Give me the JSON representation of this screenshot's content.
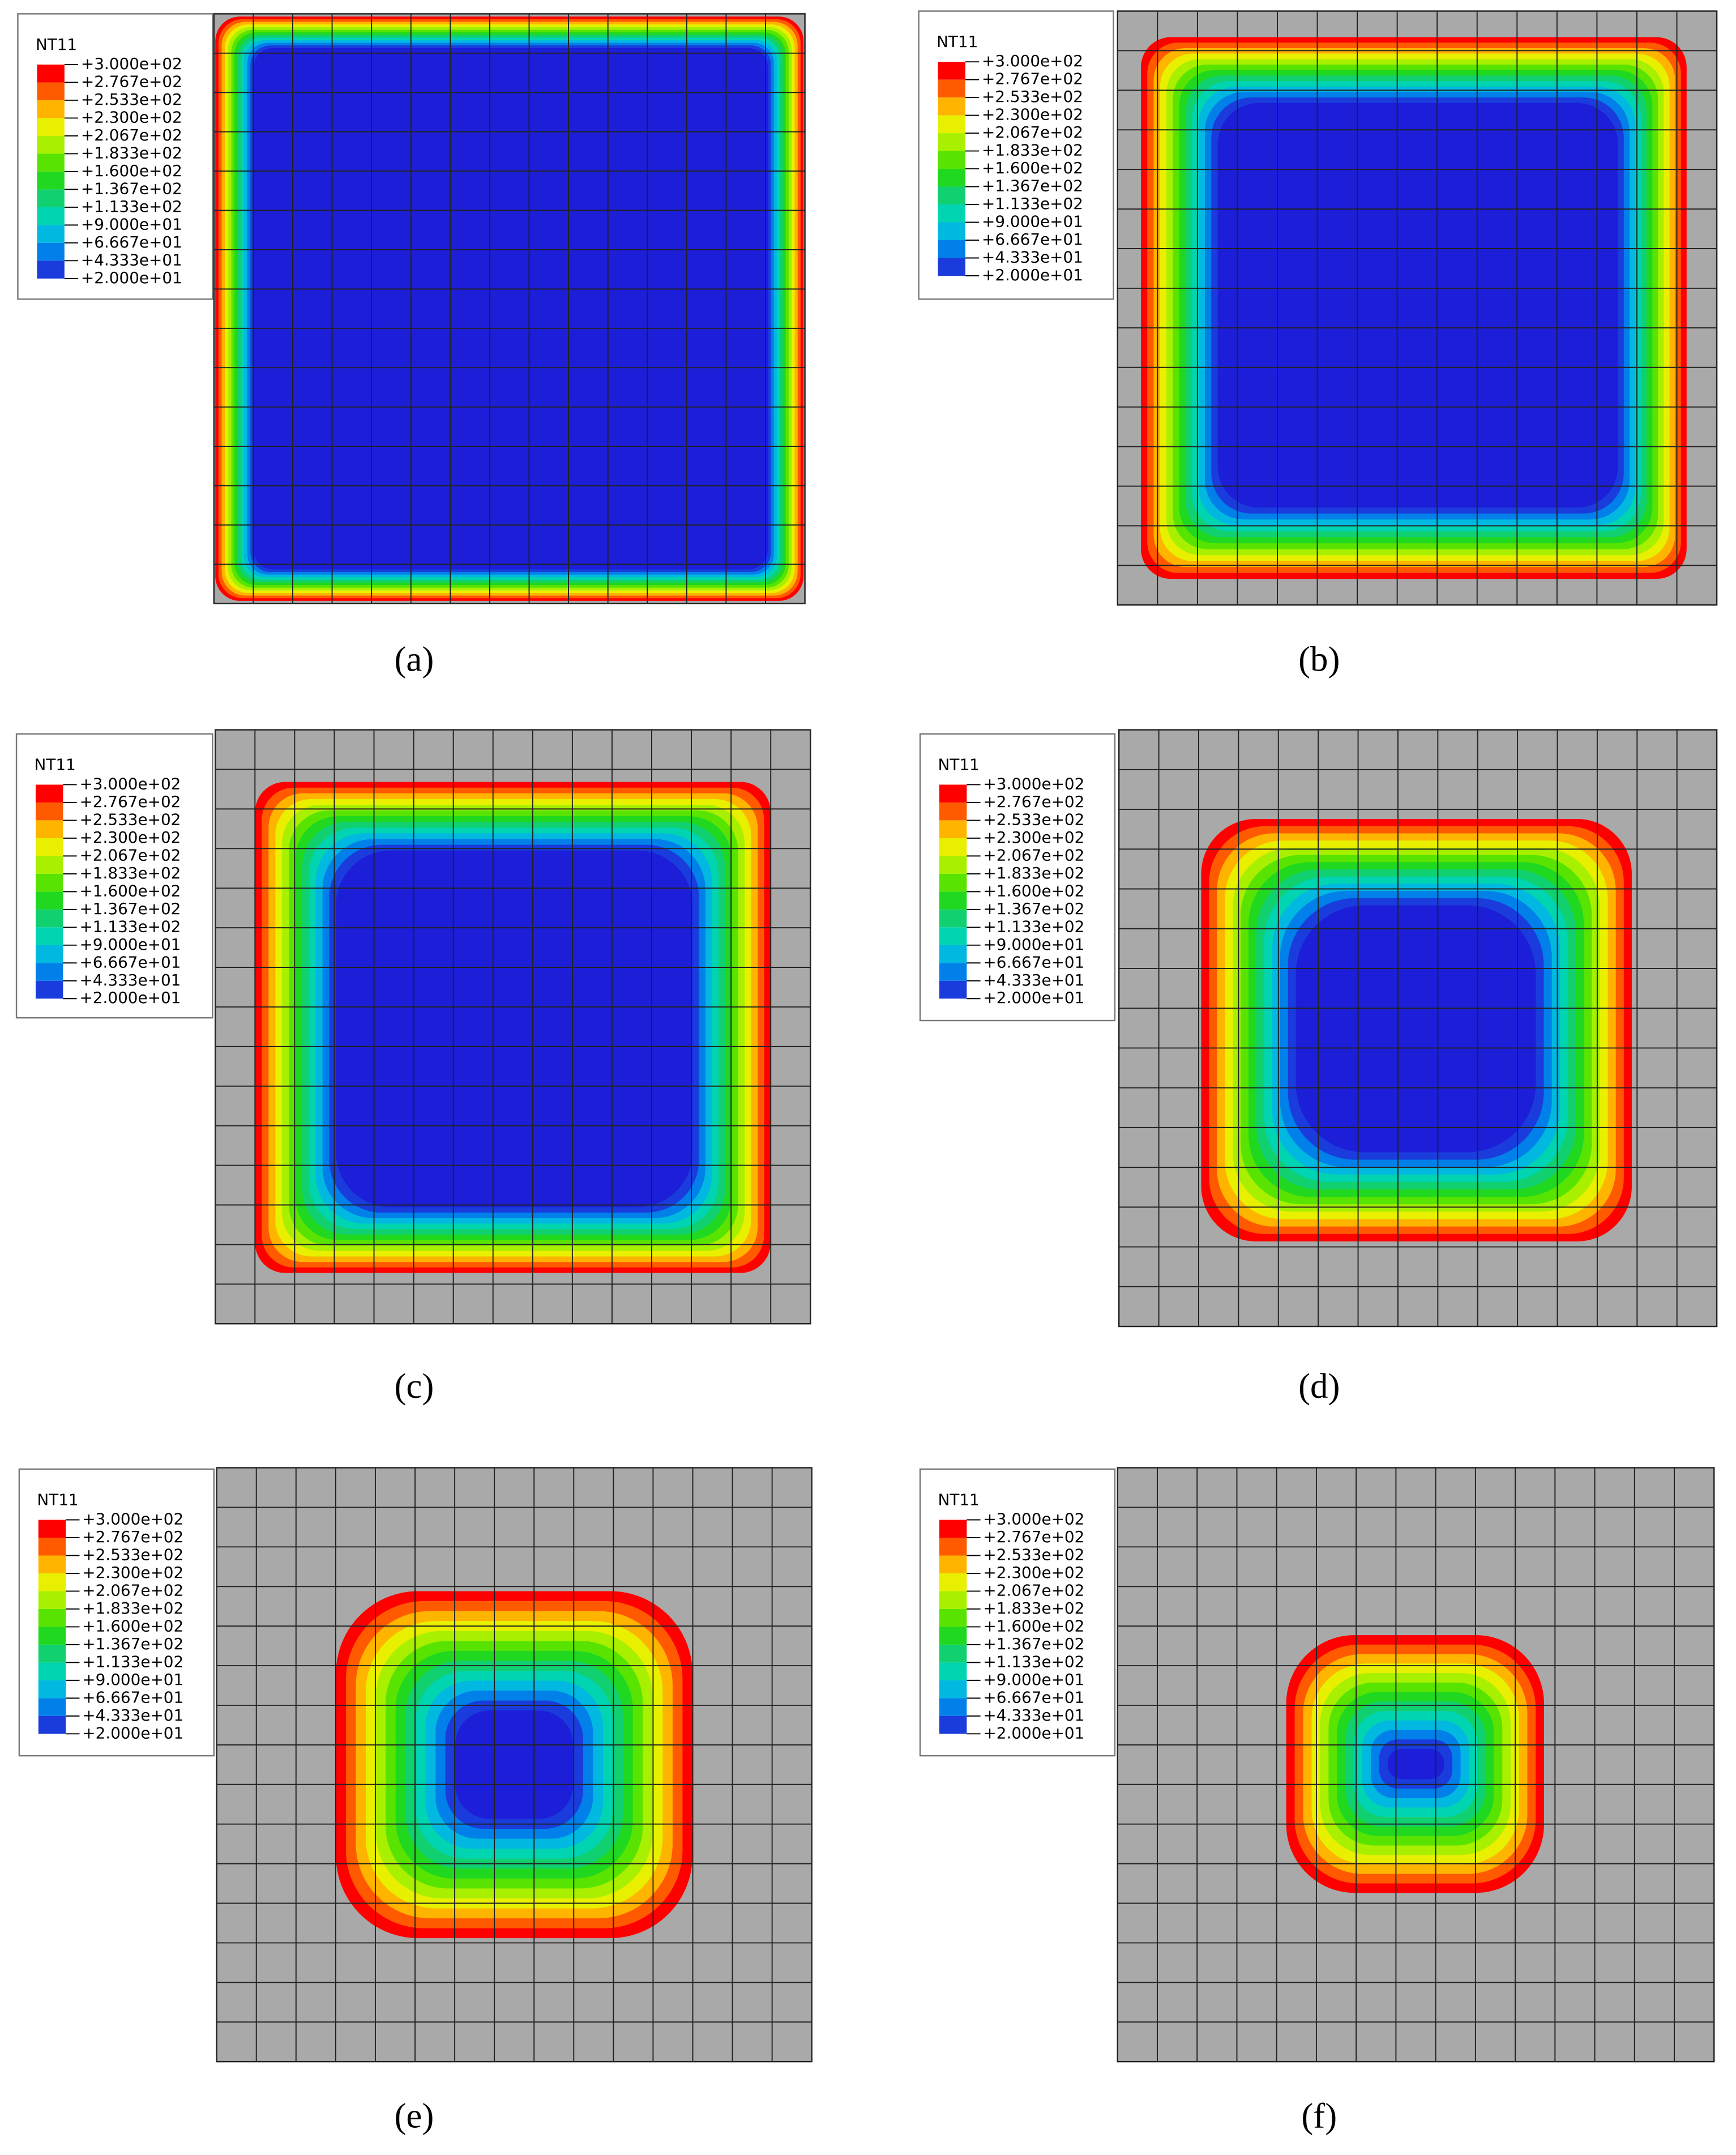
{
  "panels": [
    {
      "legend": {
        "title": "NT11",
        "levels": [
          "+3.000e+02",
          "+2.767e+02",
          "+2.533e+02",
          "+2.300e+02",
          "+2.067e+02",
          "+1.833e+02",
          "+1.600e+02",
          "+1.367e+02",
          "+1.133e+02",
          "+9.000e+01",
          "+6.667e+01",
          "+4.333e+01",
          "+2.000e+01"
        ]
      },
      "caption": "(a)"
    },
    {
      "legend": {
        "title": "NT11",
        "levels": [
          "+3.000e+02",
          "+2.767e+02",
          "+2.533e+02",
          "+2.300e+02",
          "+2.067e+02",
          "+1.833e+02",
          "+1.600e+02",
          "+1.367e+02",
          "+1.133e+02",
          "+9.000e+01",
          "+6.667e+01",
          "+4.333e+01",
          "+2.000e+01"
        ]
      },
      "caption": "(b)"
    },
    {
      "legend": {
        "title": "NT11",
        "levels": [
          "+3.000e+02",
          "+2.767e+02",
          "+2.533e+02",
          "+2.300e+02",
          "+2.067e+02",
          "+1.833e+02",
          "+1.600e+02",
          "+1.367e+02",
          "+1.133e+02",
          "+9.000e+01",
          "+6.667e+01",
          "+4.333e+01",
          "+2.000e+01"
        ]
      },
      "caption": "(c)"
    },
    {
      "legend": {
        "title": "NT11",
        "levels": [
          "+3.000e+02",
          "+2.767e+02",
          "+2.533e+02",
          "+2.300e+02",
          "+2.067e+02",
          "+1.833e+02",
          "+1.600e+02",
          "+1.367e+02",
          "+1.133e+02",
          "+9.000e+01",
          "+6.667e+01",
          "+4.333e+01",
          "+2.000e+01"
        ]
      },
      "caption": "(d)"
    },
    {
      "legend": {
        "title": "NT11",
        "levels": [
          "+3.000e+02",
          "+2.767e+02",
          "+2.533e+02",
          "+2.300e+02",
          "+2.067e+02",
          "+1.833e+02",
          "+1.600e+02",
          "+1.367e+02",
          "+1.133e+02",
          "+9.000e+01",
          "+6.667e+01",
          "+4.333e+01",
          "+2.000e+01"
        ]
      },
      "caption": "(e)"
    },
    {
      "legend": {
        "title": "NT11",
        "levels": [
          "+3.000e+02",
          "+2.767e+02",
          "+2.533e+02",
          "+2.300e+02",
          "+2.067e+02",
          "+1.833e+02",
          "+1.600e+02",
          "+1.367e+02",
          "+1.133e+02",
          "+9.000e+01",
          "+6.667e+01",
          "+4.333e+01",
          "+2.000e+01"
        ]
      },
      "caption": "(f)"
    }
  ]
}
